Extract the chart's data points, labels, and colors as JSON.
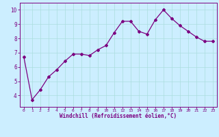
{
  "x": [
    0,
    1,
    2,
    3,
    4,
    5,
    6,
    7,
    8,
    9,
    10,
    11,
    12,
    13,
    14,
    15,
    16,
    17,
    18,
    19,
    20,
    21,
    22,
    23
  ],
  "y": [
    6.7,
    3.7,
    4.4,
    5.3,
    5.8,
    6.4,
    6.9,
    6.9,
    6.8,
    7.2,
    7.5,
    8.4,
    9.2,
    9.2,
    8.5,
    8.3,
    9.3,
    10.0,
    9.4,
    8.9,
    8.5,
    8.1,
    7.8,
    7.8
  ],
  "line_color": "#7b0080",
  "marker": "D",
  "marker_size": 2.0,
  "line_width": 0.9,
  "bg_color": "#cceeff",
  "grid_color": "#aadddd",
  "xlabel": "Windchill (Refroidissement éolien,°C)",
  "xlabel_color": "#7b0080",
  "tick_color": "#7b0080",
  "xlim": [
    -0.5,
    23.5
  ],
  "ylim": [
    3.2,
    10.5
  ],
  "yticks": [
    4,
    5,
    6,
    7,
    8,
    9,
    10
  ],
  "xticks": [
    0,
    1,
    2,
    3,
    4,
    5,
    6,
    7,
    8,
    9,
    10,
    11,
    12,
    13,
    14,
    15,
    16,
    17,
    18,
    19,
    20,
    21,
    22,
    23
  ],
  "spine_color": "#7b0080",
  "fig_bg": "#cceeff",
  "xlabel_fontsize": 5.5,
  "tick_fontsize_x": 4.5,
  "tick_fontsize_y": 5.5
}
